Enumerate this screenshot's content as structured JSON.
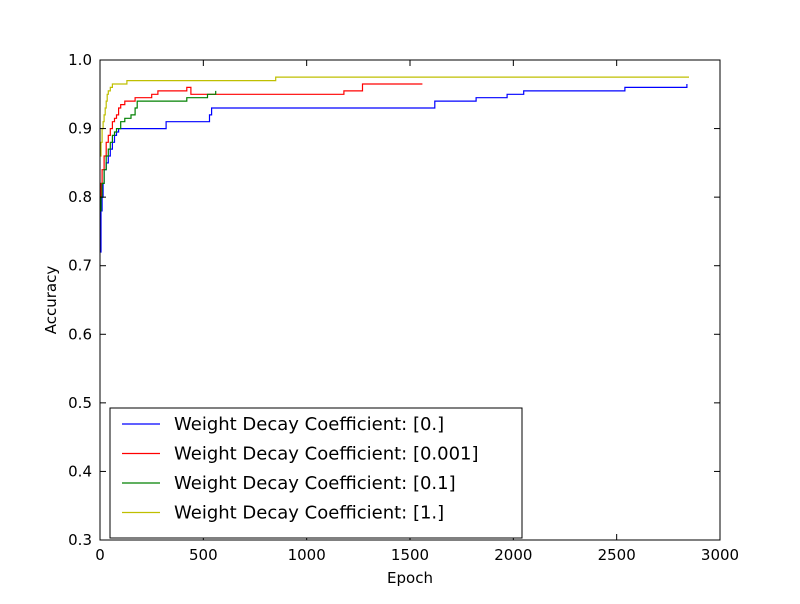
{
  "chart_data": {
    "type": "line",
    "title": "",
    "xlabel": "Epoch",
    "ylabel": "Accuracy",
    "xlim": [
      0,
      3000
    ],
    "ylim": [
      0.3,
      1.0
    ],
    "xticks": [
      0,
      500,
      1000,
      1500,
      2000,
      2500,
      3000
    ],
    "xtick_labels": [
      "0",
      "500",
      "1000",
      "1500",
      "2000",
      "2500",
      "3000"
    ],
    "yticks": [
      0.3,
      0.4,
      0.5,
      0.6,
      0.7,
      0.8,
      0.9,
      1.0
    ],
    "ytick_labels": [
      "0.3",
      "0.4",
      "0.5",
      "0.6",
      "0.7",
      "0.8",
      "0.9",
      "1.0"
    ],
    "grid": false,
    "legend_position": "lower-left",
    "series": [
      {
        "name": "Weight Decay Coefficient: [0.]",
        "color": "#0000ff",
        "x": [
          0,
          5,
          10,
          15,
          20,
          30,
          40,
          50,
          60,
          70,
          80,
          90,
          100,
          200,
          310,
          320,
          510,
          530,
          540,
          550,
          1580,
          1620,
          1820,
          1970,
          2050,
          2540,
          2840
        ],
        "y": [
          0.72,
          0.78,
          0.8,
          0.82,
          0.84,
          0.85,
          0.86,
          0.87,
          0.88,
          0.89,
          0.895,
          0.9,
          0.9,
          0.9,
          0.9,
          0.91,
          0.91,
          0.92,
          0.93,
          0.93,
          0.93,
          0.94,
          0.945,
          0.95,
          0.955,
          0.96,
          0.965
        ]
      },
      {
        "name": "Weight Decay Coefficient: [0.001]",
        "color": "#ff0000",
        "x": [
          0,
          5,
          10,
          20,
          30,
          40,
          50,
          60,
          70,
          80,
          90,
          100,
          120,
          150,
          170,
          250,
          280,
          420,
          440,
          1180,
          1270,
          1560
        ],
        "y": [
          0.8,
          0.82,
          0.84,
          0.86,
          0.88,
          0.89,
          0.9,
          0.91,
          0.915,
          0.92,
          0.93,
          0.935,
          0.94,
          0.94,
          0.945,
          0.95,
          0.955,
          0.96,
          0.95,
          0.955,
          0.965,
          0.965
        ]
      },
      {
        "name": "Weight Decay Coefficient: [0.1]",
        "color": "#008000",
        "x": [
          0,
          5,
          10,
          20,
          30,
          40,
          50,
          60,
          70,
          80,
          100,
          120,
          150,
          170,
          180,
          420,
          440,
          520,
          560
        ],
        "y": [
          0.78,
          0.8,
          0.82,
          0.84,
          0.86,
          0.87,
          0.88,
          0.89,
          0.895,
          0.9,
          0.91,
          0.915,
          0.92,
          0.93,
          0.94,
          0.945,
          0.945,
          0.95,
          0.955
        ]
      },
      {
        "name": "Weight Decay Coefficient: [1.]",
        "color": "#bfbf00",
        "x": [
          0,
          5,
          10,
          15,
          20,
          25,
          30,
          35,
          40,
          50,
          60,
          120,
          130,
          500,
          850,
          1000,
          2850
        ],
        "y": [
          0.86,
          0.88,
          0.9,
          0.91,
          0.92,
          0.93,
          0.94,
          0.95,
          0.955,
          0.96,
          0.965,
          0.965,
          0.97,
          0.97,
          0.975,
          0.975,
          0.975
        ]
      }
    ]
  }
}
